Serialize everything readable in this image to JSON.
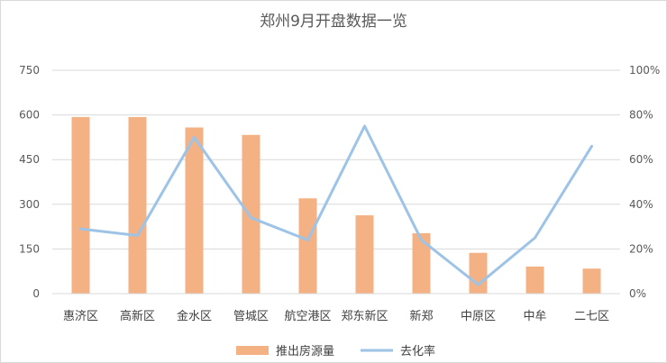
{
  "chart_data": {
    "type": "bar",
    "title": "郑州9月开盘数据一览",
    "categories": [
      "惠济区",
      "高新区",
      "金水区",
      "管城区",
      "航空港区",
      "郑东新区",
      "新郑",
      "中原区",
      "中牟",
      "二七区"
    ],
    "y_ticks": [
      "0",
      "150",
      "300",
      "450",
      "600",
      "750"
    ],
    "y2_ticks": [
      "0%",
      "20%",
      "40%",
      "60%",
      "80%",
      "100%"
    ],
    "ylim": [
      0,
      750
    ],
    "y2lim": [
      0,
      1
    ],
    "series": [
      {
        "name": "推出房源量",
        "type": "bar",
        "axis": "left",
        "values": [
          593,
          593,
          558,
          533,
          320,
          263,
          203,
          137,
          91,
          84
        ]
      },
      {
        "name": "去化率",
        "type": "line",
        "axis": "right",
        "values": [
          0.29,
          0.26,
          0.7,
          0.34,
          0.24,
          0.75,
          0.24,
          0.04,
          0.25,
          0.66
        ]
      }
    ],
    "colors": {
      "bar": "#F4B183",
      "line": "#9DC3E6",
      "grid": "#d9d9d9",
      "text": "#595959"
    },
    "grid": true,
    "legend_position": "bottom"
  }
}
